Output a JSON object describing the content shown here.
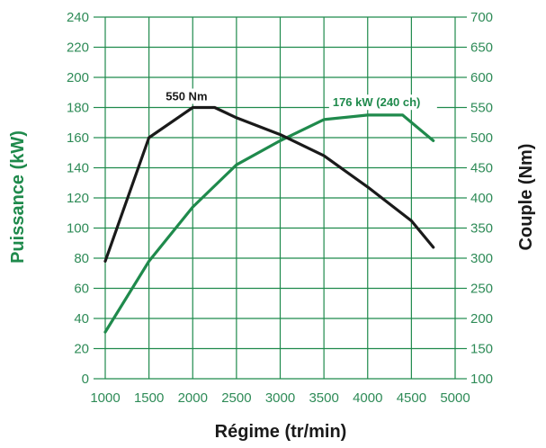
{
  "chart_data": {
    "type": "line",
    "x_label": "Régime (tr/min)",
    "y_left_label": "Puissance (kW)",
    "y_right_label": "Couple (Nm)",
    "x_ticks": [
      1000,
      1500,
      2000,
      2500,
      3000,
      3500,
      4000,
      4500,
      5000
    ],
    "y_left_ticks": [
      0,
      20,
      40,
      60,
      80,
      100,
      120,
      140,
      160,
      180,
      200,
      220,
      240
    ],
    "y_right_ticks": [
      100,
      150,
      200,
      250,
      300,
      350,
      400,
      450,
      500,
      550,
      600,
      650,
      700
    ],
    "xlim": [
      1000,
      5000
    ],
    "ylim_left": [
      0,
      240
    ],
    "ylim_right": [
      100,
      700
    ],
    "grid": true,
    "series": [
      {
        "axis": "left",
        "color": "#1f8a4c",
        "x": [
          1000,
          1500,
          2000,
          2500,
          3000,
          3500,
          4000,
          4400,
          4750
        ],
        "y": [
          31,
          78,
          114,
          142,
          158,
          172,
          175,
          175,
          158
        ]
      },
      {
        "axis": "right",
        "color": "#1a1a1a",
        "x": [
          1000,
          1500,
          2000,
          2250,
          2500,
          3000,
          3500,
          4000,
          4500,
          4750
        ],
        "y": [
          295,
          500,
          550,
          550,
          533,
          505,
          470,
          418,
          362,
          318
        ]
      }
    ],
    "annotations": [
      {
        "text": "550 Nm",
        "color": "#1a1a1a",
        "x": 2000,
        "y_right": 550
      },
      {
        "text": "176 kW (240 ch)",
        "color": "#1f8a4c",
        "x": 3600,
        "y_left": 176
      }
    ]
  }
}
